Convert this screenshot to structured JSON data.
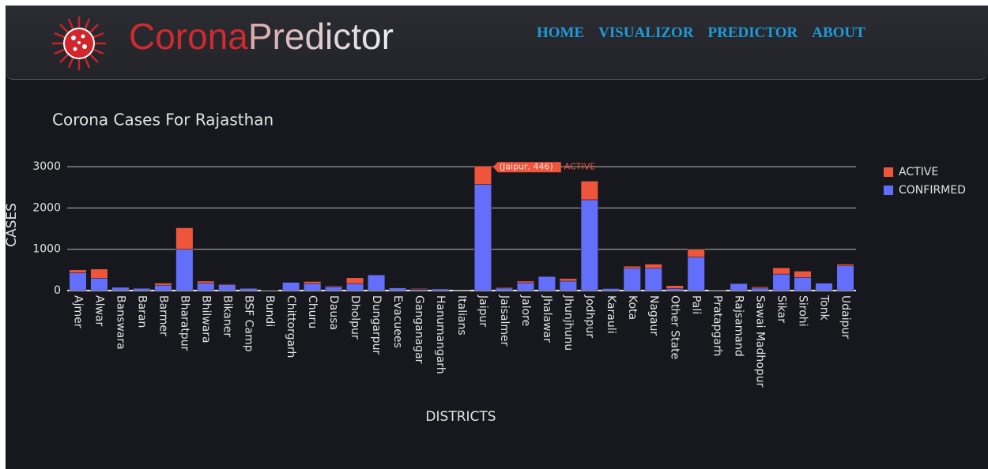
{
  "header": {
    "brand_first": "Corona",
    "brand_second": "Predictor",
    "nav": [
      "HOME",
      "VISUALIZOR",
      "PREDICTOR",
      "ABOUT"
    ]
  },
  "chart_data": {
    "type": "bar",
    "stacked": true,
    "title": "Corona Cases For Rajasthan",
    "xlabel": "DISTRICTS",
    "ylabel": "CASES",
    "categories": [
      "Ajmer",
      "Alwar",
      "Banswara",
      "Baran",
      "Barmer",
      "Bharatpur",
      "Bhilwara",
      "Bikaner",
      "BSF Camp",
      "Bundi",
      "Chittorgarh",
      "Churu",
      "Dausa",
      "Dholpur",
      "Dungarpur",
      "Evacuees",
      "Ganganagar",
      "Hanumangarh",
      "Italians",
      "Jaipur",
      "Jaisalmer",
      "Jalore",
      "Jhalawar",
      "Jhunjhunu",
      "Jodhpur",
      "Karauli",
      "Kota",
      "Nagaur",
      "Other State",
      "Pali",
      "Pratapgarh",
      "Rajsamand",
      "Sawai Madhopur",
      "Sikar",
      "Sirohi",
      "Tonk",
      "Udaipur"
    ],
    "series": [
      {
        "name": "ACTIVE",
        "color": "#ef553b",
        "values": [
          70,
          220,
          10,
          5,
          50,
          520,
          50,
          20,
          5,
          10,
          10,
          50,
          20,
          140,
          10,
          5,
          20,
          10,
          0,
          446,
          20,
          40,
          10,
          60,
          450,
          10,
          50,
          100,
          70,
          190,
          5,
          10,
          30,
          150,
          150,
          10,
          40
        ]
      },
      {
        "name": "CONFIRMED",
        "color": "#636efa",
        "values": [
          430,
          300,
          80,
          55,
          130,
          1000,
          180,
          140,
          55,
          10,
          200,
          170,
          90,
          170,
          380,
          65,
          30,
          40,
          2,
          2570,
          60,
          190,
          340,
          230,
          2200,
          50,
          540,
          540,
          50,
          810,
          5,
          170,
          60,
          400,
          320,
          180,
          600
        ]
      }
    ],
    "ylim": [
      0,
      3300
    ],
    "yticks": [
      0,
      1000,
      2000,
      3000
    ],
    "grid": true,
    "legend": "top-right",
    "tooltip": {
      "text": "(Jaipur, 446)",
      "category_index": 19,
      "series_index": 0
    }
  }
}
